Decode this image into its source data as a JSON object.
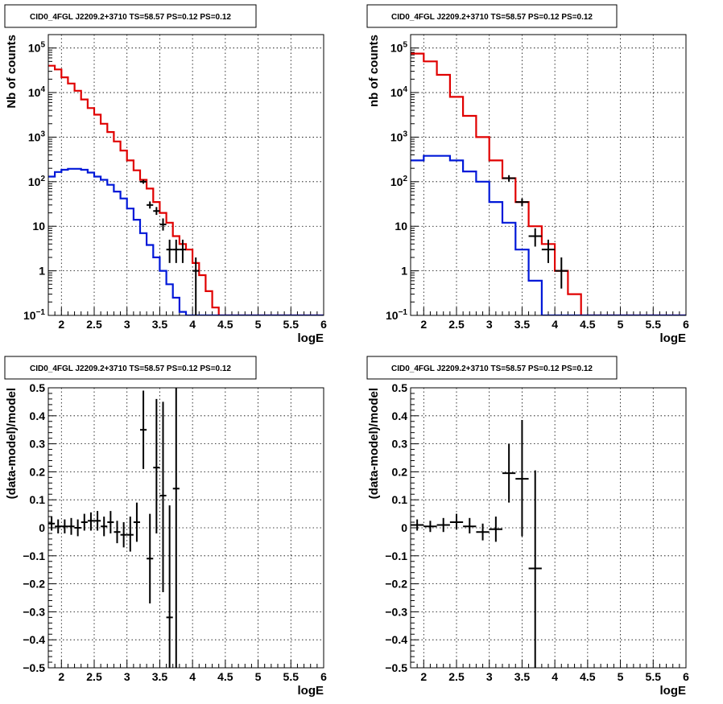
{
  "panels": [
    {
      "title": "CID0_4FGL J2209.2+3710 TS=58.57 PS=0.12 PS=0.12",
      "type": "counts",
      "xlabel": "logE",
      "ylabel": "Nb of counts",
      "xlim": [
        1.8,
        6.0
      ],
      "ylim": [
        0.1,
        200000
      ],
      "yscale": "log",
      "x_ticks": [
        "2",
        "2.5",
        "3",
        "3.5",
        "4",
        "4.5",
        "5",
        "5.5",
        "6"
      ],
      "y_ticks": [
        "10^-1",
        "1",
        "10",
        "10^2",
        "10^3",
        "10^4",
        "10^5"
      ],
      "grid": true,
      "series": [
        {
          "color": "#e00000",
          "kind": "step",
          "bin_width": 0.1,
          "x": [
            1.8,
            1.9,
            2.0,
            2.1,
            2.2,
            2.3,
            2.4,
            2.5,
            2.6,
            2.7,
            2.8,
            2.9,
            3.0,
            3.1,
            3.2,
            3.3,
            3.4,
            3.5,
            3.6,
            3.7,
            3.8,
            3.9,
            4.0,
            4.1,
            4.2,
            4.3,
            4.4,
            4.5,
            4.6,
            4.7,
            4.8,
            4.9,
            5.0,
            5.1,
            5.2,
            5.3,
            5.4,
            5.5,
            5.6,
            5.7,
            5.8,
            5.9
          ],
          "y": [
            40000,
            33000,
            22000,
            16000,
            11000,
            7000,
            4500,
            3200,
            2000,
            1300,
            800,
            500,
            300,
            180,
            110,
            70,
            35,
            20,
            12,
            6,
            4,
            3,
            1.5,
            0.8,
            0.35,
            0.15,
            0.05,
            0.05,
            0.05,
            0.05,
            0.05,
            0.05,
            0.05,
            0.05,
            0.05,
            0.05,
            0.05,
            0.05,
            0.05,
            0.05,
            0.05,
            0.05
          ]
        },
        {
          "color": "#0018d8",
          "kind": "step",
          "bin_width": 0.1,
          "x": [
            1.8,
            1.9,
            2.0,
            2.1,
            2.2,
            2.3,
            2.4,
            2.5,
            2.6,
            2.7,
            2.8,
            2.9,
            3.0,
            3.1,
            3.2,
            3.3,
            3.4,
            3.5,
            3.6,
            3.7,
            3.8,
            3.9,
            4.0,
            4.1,
            4.2,
            4.3,
            4.4,
            4.5,
            4.6,
            4.7,
            4.8,
            4.9,
            5.0,
            5.1,
            5.2,
            5.3,
            5.4,
            5.5,
            5.6,
            5.7,
            5.8,
            5.9
          ],
          "y": [
            130,
            165,
            185,
            195,
            195,
            185,
            160,
            130,
            110,
            85,
            60,
            42,
            25,
            14,
            7,
            3.8,
            2,
            1,
            0.5,
            0.25,
            0.12,
            0.1,
            0.1,
            0.1,
            0.1,
            0.1,
            0.1,
            0.1,
            0.1,
            0.1,
            0.1,
            0.1,
            0.1,
            0.1,
            0.1,
            0.1,
            0.1,
            0.1,
            0.1,
            0.1,
            0.1,
            0.1
          ]
        },
        {
          "color": "#000000",
          "kind": "errorbar",
          "half_width": 0.05,
          "points": [
            {
              "x": 3.25,
              "y": 100,
              "lo": 90,
              "hi": 110
            },
            {
              "x": 3.35,
              "y": 30,
              "lo": 25,
              "hi": 36
            },
            {
              "x": 3.45,
              "y": 22,
              "lo": 18,
              "hi": 27
            },
            {
              "x": 3.55,
              "y": 11,
              "lo": 8,
              "hi": 15
            },
            {
              "x": 3.65,
              "y": 3,
              "lo": 1.5,
              "hi": 5
            },
            {
              "x": 3.75,
              "y": 3,
              "lo": 1.5,
              "hi": 5
            },
            {
              "x": 3.85,
              "y": 3,
              "lo": 1.5,
              "hi": 5
            },
            {
              "x": 4.05,
              "y": 1,
              "lo": 0.1,
              "hi": 2
            }
          ]
        }
      ]
    },
    {
      "title": "CID0_4FGL J2209.2+3710 TS=58.57 PS=0.12 PS=0.12",
      "type": "counts",
      "xlabel": "logE",
      "ylabel": "nb of counts",
      "xlim": [
        1.8,
        6.0
      ],
      "ylim": [
        0.1,
        200000
      ],
      "yscale": "log",
      "x_ticks": [
        "2",
        "2.5",
        "3",
        "3.5",
        "4",
        "4.5",
        "5",
        "5.5",
        "6"
      ],
      "y_ticks": [
        "10^-1",
        "1",
        "10",
        "10^2",
        "10^3",
        "10^4",
        "10^5"
      ],
      "grid": true,
      "series": [
        {
          "color": "#e00000",
          "kind": "step",
          "bin_width": 0.2,
          "x": [
            1.8,
            2.0,
            2.2,
            2.4,
            2.6,
            2.8,
            3.0,
            3.2,
            3.4,
            3.6,
            3.8,
            4.0,
            4.2,
            4.4,
            4.6,
            4.8,
            5.0,
            5.2,
            5.4,
            5.6,
            5.8
          ],
          "y": [
            75000,
            50000,
            25000,
            8000,
            3000,
            1000,
            300,
            120,
            35,
            10,
            4,
            1,
            0.3,
            0.05,
            0.05,
            0.05,
            0.05,
            0.05,
            0.05,
            0.05,
            0.05
          ]
        },
        {
          "color": "#0018d8",
          "kind": "step",
          "bin_width": 0.2,
          "x": [
            1.8,
            2.0,
            2.2,
            2.4,
            2.6,
            2.8,
            3.0,
            3.2,
            3.4,
            3.6,
            3.8,
            4.0,
            4.2,
            4.4,
            4.6,
            4.8,
            5.0,
            5.2,
            5.4,
            5.6,
            5.8
          ],
          "y": [
            300,
            380,
            380,
            300,
            170,
            100,
            35,
            12,
            3,
            0.6,
            0.1,
            0.1,
            0.1,
            0.1,
            0.1,
            0.1,
            0.1,
            0.1,
            0.1,
            0.1,
            0.1
          ]
        },
        {
          "color": "#000000",
          "kind": "errorbar",
          "half_width": 0.1,
          "points": [
            {
              "x": 3.3,
              "y": 120,
              "lo": 100,
              "hi": 140
            },
            {
              "x": 3.5,
              "y": 35,
              "lo": 28,
              "hi": 42
            },
            {
              "x": 3.7,
              "y": 6,
              "lo": 3.5,
              "hi": 9
            },
            {
              "x": 3.9,
              "y": 3,
              "lo": 1.5,
              "hi": 5
            },
            {
              "x": 4.1,
              "y": 1,
              "lo": 0.4,
              "hi": 2
            }
          ]
        }
      ]
    },
    {
      "title": "CID0_4FGL J2209.2+3710 TS=58.57 PS=0.12 PS=0.12",
      "type": "residual",
      "xlabel": "logE",
      "ylabel": "(data-model)/model",
      "xlim": [
        1.8,
        6.0
      ],
      "ylim": [
        -0.5,
        0.5
      ],
      "yscale": "linear",
      "x_ticks": [
        "2",
        "2.5",
        "3",
        "3.5",
        "4",
        "4.5",
        "5",
        "5.5",
        "6"
      ],
      "y_ticks": [
        "-0.5",
        "-0.4",
        "-0.3",
        "-0.2",
        "-0.1",
        "0",
        "0.1",
        "0.2",
        "0.3",
        "0.4",
        "0.5"
      ],
      "grid": true,
      "series": [
        {
          "color": "#000000",
          "kind": "errorbar",
          "half_width": 0.05,
          "points": [
            {
              "x": 1.85,
              "y": 0.015,
              "lo": -0.01,
              "hi": 0.04
            },
            {
              "x": 1.95,
              "y": 0.005,
              "lo": -0.02,
              "hi": 0.03
            },
            {
              "x": 2.05,
              "y": 0.005,
              "lo": -0.02,
              "hi": 0.03
            },
            {
              "x": 2.15,
              "y": 0.005,
              "lo": -0.025,
              "hi": 0.035
            },
            {
              "x": 2.25,
              "y": 0.0,
              "lo": -0.03,
              "hi": 0.03
            },
            {
              "x": 2.35,
              "y": 0.02,
              "lo": -0.01,
              "hi": 0.05
            },
            {
              "x": 2.45,
              "y": 0.025,
              "lo": -0.01,
              "hi": 0.055
            },
            {
              "x": 2.55,
              "y": 0.025,
              "lo": -0.01,
              "hi": 0.06
            },
            {
              "x": 2.65,
              "y": 0.005,
              "lo": -0.03,
              "hi": 0.04
            },
            {
              "x": 2.75,
              "y": 0.02,
              "lo": -0.02,
              "hi": 0.06
            },
            {
              "x": 2.85,
              "y": -0.015,
              "lo": -0.055,
              "hi": 0.025
            },
            {
              "x": 2.95,
              "y": -0.025,
              "lo": -0.07,
              "hi": 0.02
            },
            {
              "x": 3.05,
              "y": -0.025,
              "lo": -0.085,
              "hi": 0.04
            },
            {
              "x": 3.15,
              "y": 0.02,
              "lo": -0.05,
              "hi": 0.09
            },
            {
              "x": 3.25,
              "y": 0.35,
              "lo": 0.21,
              "hi": 0.49
            },
            {
              "x": 3.35,
              "y": -0.11,
              "lo": -0.27,
              "hi": 0.05
            },
            {
              "x": 3.45,
              "y": 0.215,
              "lo": -0.02,
              "hi": 0.46
            },
            {
              "x": 3.55,
              "y": 0.115,
              "lo": -0.23,
              "hi": 0.45
            },
            {
              "x": 3.65,
              "y": -0.32,
              "lo": -0.72,
              "hi": 0.08
            },
            {
              "x": 3.75,
              "y": 0.14,
              "lo": -0.5,
              "hi": 0.5
            }
          ]
        }
      ]
    },
    {
      "title": "CID0_4FGL J2209.2+3710 TS=58.57 PS=0.12 PS=0.12",
      "type": "residual",
      "xlabel": "logE",
      "ylabel": "(data-model)/model",
      "xlim": [
        1.8,
        6.0
      ],
      "ylim": [
        -0.5,
        0.5
      ],
      "yscale": "linear",
      "x_ticks": [
        "2",
        "2.5",
        "3",
        "3.5",
        "4",
        "4.5",
        "5",
        "5.5",
        "6"
      ],
      "y_ticks": [
        "-0.5",
        "-0.4",
        "-0.3",
        "-0.2",
        "-0.1",
        "0",
        "0.1",
        "0.2",
        "0.3",
        "0.4",
        "0.5"
      ],
      "grid": true,
      "series": [
        {
          "color": "#000000",
          "kind": "errorbar",
          "half_width": 0.1,
          "points": [
            {
              "x": 1.9,
              "y": 0.01,
              "lo": -0.01,
              "hi": 0.03
            },
            {
              "x": 2.1,
              "y": 0.005,
              "lo": -0.015,
              "hi": 0.025
            },
            {
              "x": 2.3,
              "y": 0.01,
              "lo": -0.015,
              "hi": 0.035
            },
            {
              "x": 2.5,
              "y": 0.02,
              "lo": -0.005,
              "hi": 0.05
            },
            {
              "x": 2.7,
              "y": 0.005,
              "lo": -0.02,
              "hi": 0.035
            },
            {
              "x": 2.9,
              "y": -0.015,
              "lo": -0.045,
              "hi": 0.015
            },
            {
              "x": 3.1,
              "y": -0.005,
              "lo": -0.05,
              "hi": 0.04
            },
            {
              "x": 3.3,
              "y": 0.195,
              "lo": 0.09,
              "hi": 0.3
            },
            {
              "x": 3.5,
              "y": 0.175,
              "lo": -0.03,
              "hi": 0.385
            },
            {
              "x": 3.7,
              "y": -0.145,
              "lo": -0.5,
              "hi": 0.205
            }
          ]
        }
      ]
    }
  ]
}
